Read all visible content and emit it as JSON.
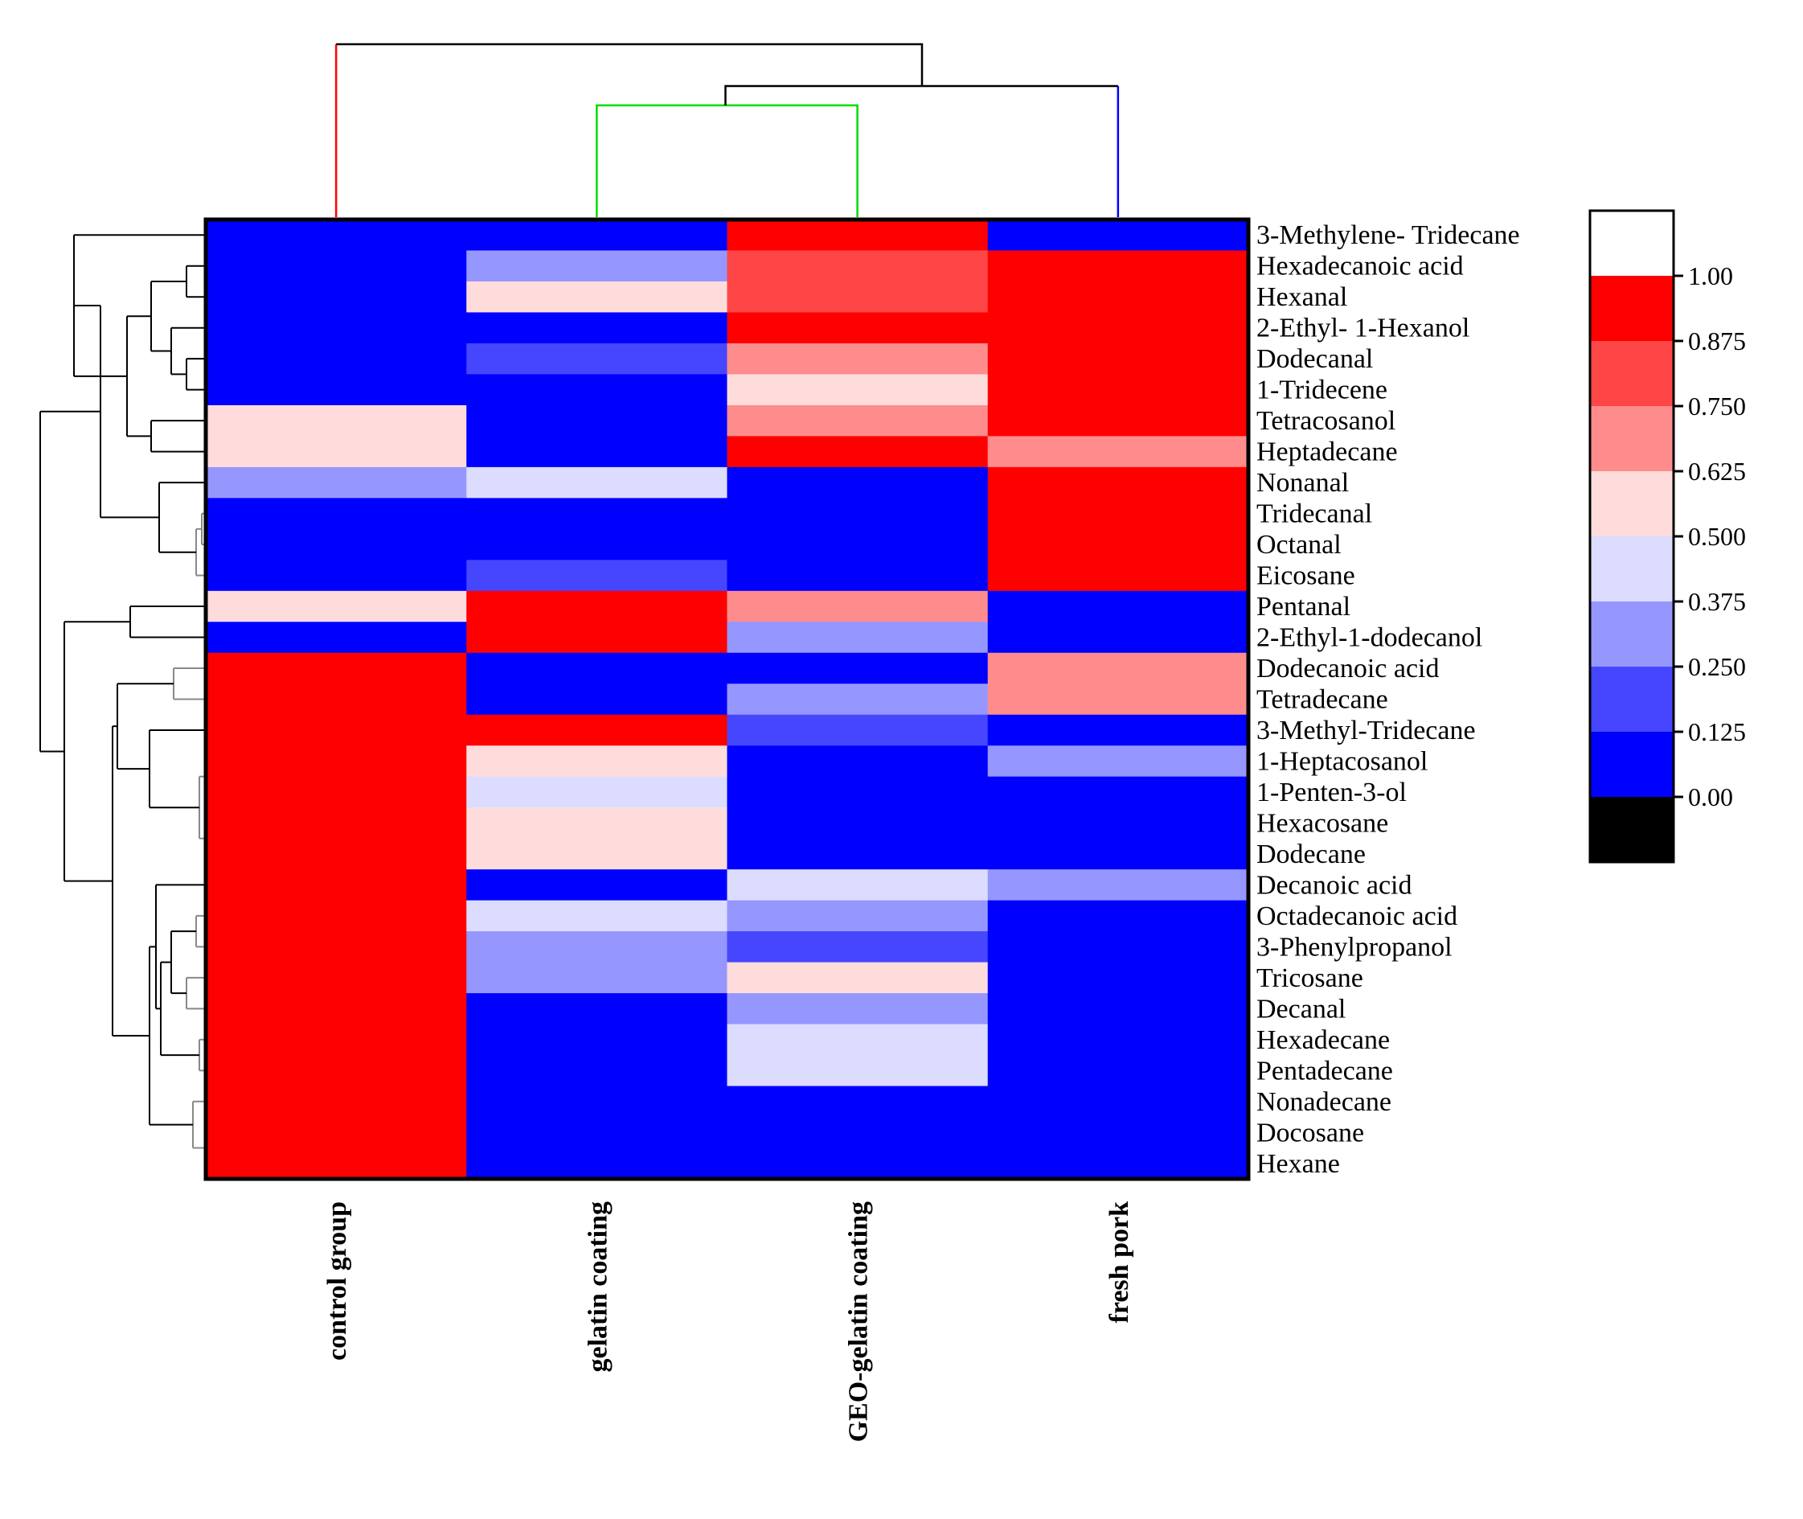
{
  "chart_data": {
    "type": "heatmap",
    "columns": [
      "control group",
      "gelatin coating",
      "GEO-gelatin coating",
      "fresh pork"
    ],
    "rows": [
      "3-Methylene- Tridecane",
      "Hexadecanoic acid",
      "Hexanal",
      "2-Ethyl- 1-Hexanol",
      "Dodecanal",
      "1-Tridecene",
      "Tetracosanol",
      "Heptadecane",
      "Nonanal",
      "Tridecanal",
      "Octanal",
      "Eicosane",
      "Pentanal",
      "2-Ethyl-1-dodecanol",
      "Dodecanoic acid",
      "Tetradecane",
      "3-Methyl-Tridecane",
      "1-Heptacosanol",
      "1-Penten-3-ol",
      "Hexacosane",
      "Dodecane",
      "Decanoic acid",
      "Octadecanoic acid",
      "3-Phenylpropanol",
      "Tricosane",
      "Decanal",
      "Hexadecane",
      "Pentadecane",
      "Nonadecane",
      "Docosane",
      "Hexane"
    ],
    "values": [
      [
        0.0,
        0.0,
        1.0,
        0.0
      ],
      [
        0.0,
        0.3,
        0.8,
        1.0
      ],
      [
        0.0,
        0.6,
        0.8,
        1.0
      ],
      [
        0.0,
        0.0,
        1.0,
        1.0
      ],
      [
        0.0,
        0.2,
        0.7,
        1.0
      ],
      [
        0.0,
        0.0,
        0.6,
        1.0
      ],
      [
        0.6,
        0.0,
        0.7,
        1.0
      ],
      [
        0.6,
        0.0,
        1.0,
        0.7
      ],
      [
        0.3,
        0.45,
        0.0,
        1.0
      ],
      [
        0.0,
        0.0,
        0.0,
        1.0
      ],
      [
        0.0,
        0.0,
        0.0,
        1.0
      ],
      [
        0.0,
        0.2,
        0.0,
        1.0
      ],
      [
        0.6,
        1.0,
        0.7,
        0.0
      ],
      [
        0.0,
        1.0,
        0.3,
        0.0
      ],
      [
        1.0,
        0.0,
        0.0,
        0.7
      ],
      [
        1.0,
        0.0,
        0.3,
        0.7
      ],
      [
        1.0,
        1.0,
        0.2,
        0.0
      ],
      [
        1.0,
        0.6,
        0.0,
        0.3
      ],
      [
        1.0,
        0.45,
        0.0,
        0.0
      ],
      [
        1.0,
        0.6,
        0.0,
        0.0
      ],
      [
        1.0,
        0.6,
        0.0,
        0.0
      ],
      [
        1.0,
        0.0,
        0.45,
        0.3
      ],
      [
        1.0,
        0.45,
        0.3,
        0.0
      ],
      [
        1.0,
        0.3,
        0.2,
        0.0
      ],
      [
        1.0,
        0.3,
        0.6,
        0.0
      ],
      [
        1.0,
        0.0,
        0.3,
        0.0
      ],
      [
        1.0,
        0.0,
        0.45,
        0.0
      ],
      [
        1.0,
        0.0,
        0.45,
        0.0
      ],
      [
        1.0,
        0.0,
        0.0,
        0.0
      ],
      [
        1.0,
        0.0,
        0.0,
        0.0
      ],
      [
        1.0,
        0.0,
        0.0,
        0.0
      ]
    ],
    "color_scale": {
      "ticks": [
        "1.00",
        "0.875",
        "0.750",
        "0.625",
        "0.500",
        "0.375",
        "0.250",
        "0.125",
        "0.00"
      ],
      "colors": [
        "#ffffff",
        "#ff0000",
        "#ff4646",
        "#ff8c8c",
        "#ffdcdc",
        "#dcdcff",
        "#9696ff",
        "#4646ff",
        "#0000ff",
        "#000000"
      ]
    },
    "column_dendrogram": {
      "order": [
        "control group",
        "gelatin coating",
        "GEO-gelatin coating",
        "fresh pork"
      ],
      "branch_colors": [
        "#ff0000",
        "#00dd00",
        "#0000ff",
        "#000000"
      ]
    },
    "row_dendrogram": true
  }
}
